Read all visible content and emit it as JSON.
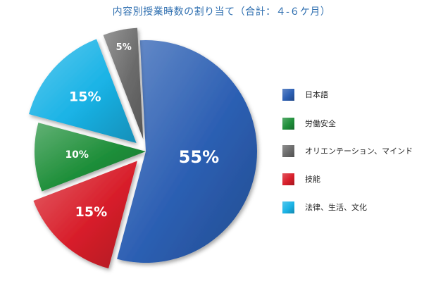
{
  "chart_data": {
    "type": "pie",
    "title": "内容別授業時数の割り当て（合計：４‐６ケ月）",
    "slices": [
      {
        "label": "日本語",
        "value": 55,
        "value_label": "55%",
        "color": "#2c5fb3",
        "exploded": false
      },
      {
        "label": "技能",
        "value": 15,
        "value_label": "15%",
        "color": "#d81e2a",
        "exploded": true
      },
      {
        "label": "労働安全",
        "value": 10,
        "value_label": "10%",
        "color": "#1f8f3a",
        "exploded": false
      },
      {
        "label": "法律、生活、文化",
        "value": 15,
        "value_label": "15%",
        "color": "#1ab3e6",
        "exploded": true
      },
      {
        "label": "オリエンテーション、マインド",
        "value": 5,
        "value_label": "5%",
        "color": "#6b6b6b",
        "exploded": true
      }
    ],
    "legend": [
      {
        "label": "日本語",
        "color": "#2c5fb3"
      },
      {
        "label": "労働安全",
        "color": "#1f8f3a"
      },
      {
        "label": "オリエンテーション、マインド",
        "color": "#6b6b6b"
      },
      {
        "label": "技能",
        "color": "#d81e2a"
      },
      {
        "label": "法律、生活、文化",
        "color": "#1ab3e6"
      }
    ],
    "legend_position": "right",
    "title_color": "#2f6fb0"
  }
}
